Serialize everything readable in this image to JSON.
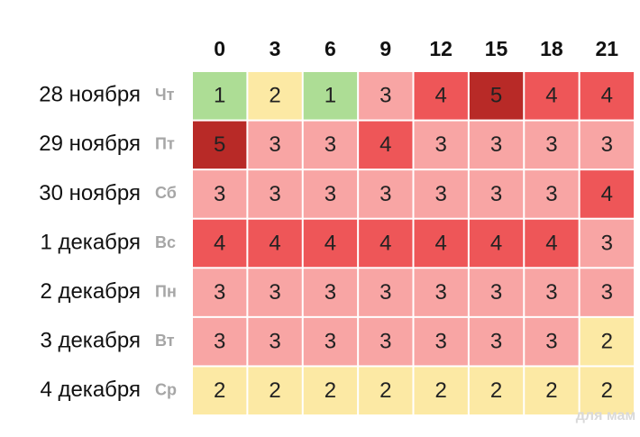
{
  "chart_data": {
    "type": "heatmap",
    "categories": [
      "0",
      "3",
      "6",
      "9",
      "12",
      "15",
      "18",
      "21"
    ],
    "series": [
      {
        "name": "28 ноября",
        "day": "Чт",
        "values": [
          1,
          2,
          1,
          3,
          4,
          5,
          4,
          4
        ]
      },
      {
        "name": "29 ноября",
        "day": "Пт",
        "values": [
          5,
          3,
          3,
          4,
          3,
          3,
          3,
          3
        ]
      },
      {
        "name": "30 ноября",
        "day": "Сб",
        "values": [
          3,
          3,
          3,
          3,
          3,
          3,
          3,
          4
        ]
      },
      {
        "name": "1 декабря",
        "day": "Вс",
        "values": [
          4,
          4,
          4,
          4,
          4,
          4,
          4,
          3
        ]
      },
      {
        "name": "2 декабря",
        "day": "Пн",
        "values": [
          3,
          3,
          3,
          3,
          3,
          3,
          3,
          3
        ]
      },
      {
        "name": "3 декабря",
        "day": "Вт",
        "values": [
          3,
          3,
          3,
          3,
          3,
          3,
          3,
          2
        ]
      },
      {
        "name": "4 декабря",
        "day": "Ср",
        "values": [
          2,
          2,
          2,
          2,
          2,
          2,
          2,
          2
        ]
      }
    ],
    "colors": {
      "1": "#addd95",
      "2": "#fce9a4",
      "3": "#f8a5a4",
      "4": "#ee5658",
      "5": "#b82a27"
    },
    "watermark": "для мам"
  }
}
